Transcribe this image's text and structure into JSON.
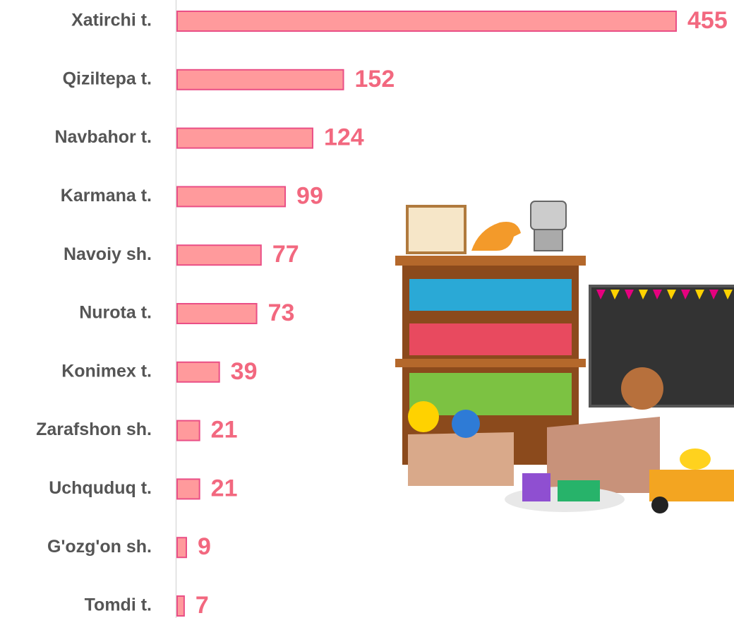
{
  "chart_data": {
    "type": "bar",
    "orientation": "horizontal",
    "categories": [
      "Xatirchi t.",
      "Qiziltepa t.",
      "Navbahor t.",
      "Karmana t.",
      "Navoiy sh.",
      "Nurota t.",
      "Konimex t.",
      "Zarafshon sh.",
      "Uchquduq t.",
      "G'ozg'on sh.",
      "Tomdi t."
    ],
    "values": [
      455,
      152,
      124,
      99,
      77,
      73,
      39,
      21,
      21,
      9,
      7
    ],
    "color": "#ff9a9c",
    "edge_color": "#ea4f86",
    "value_label_color": "#f2687f",
    "category_label_color": "#555555"
  }
}
